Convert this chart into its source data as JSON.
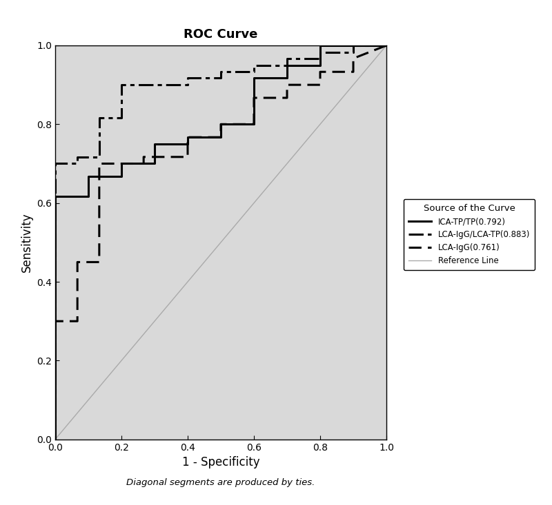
{
  "title": "ROC Curve",
  "xlabel": "1 - Specificity",
  "ylabel": "Sensitivity",
  "footnote": "Diagonal segments are produced by ties.",
  "xlim": [
    0.0,
    1.0
  ],
  "ylim": [
    0.0,
    1.0
  ],
  "xticks": [
    0.0,
    0.2,
    0.4,
    0.6,
    0.8,
    1.0
  ],
  "yticks": [
    0.0,
    0.2,
    0.4,
    0.6,
    0.8,
    1.0
  ],
  "plot_bg_color": "#d9d9d9",
  "fig_bg_color": "#ffffff",
  "legend_title": "Source of the Curve",
  "legend_entries": [
    "ICA-TP/TP(0.792)",
    "LCA-IgG/LCA-TP(0.883)",
    "LCA-IgG(0.761)",
    "Reference Line"
  ],
  "curve1_color": "#000000",
  "curve2_color": "#000000",
  "curve3_color": "#000000",
  "ref_color": "#aaaaaa",
  "curve1_lw": 2.2,
  "curve2_lw": 2.2,
  "curve3_lw": 2.2,
  "curve1_x": [
    0.0,
    0.0,
    0.1,
    0.1,
    0.2,
    0.2,
    0.3,
    0.3,
    0.4,
    0.4,
    0.5,
    0.5,
    0.6,
    0.6,
    0.7,
    0.7,
    0.8,
    0.8,
    1.0
  ],
  "curve1_y": [
    0.0,
    0.617,
    0.617,
    0.667,
    0.667,
    0.7,
    0.7,
    0.75,
    0.75,
    0.767,
    0.767,
    0.8,
    0.8,
    0.917,
    0.917,
    0.95,
    0.95,
    1.0,
    1.0
  ],
  "curve2_x": [
    0.0,
    0.0,
    0.067,
    0.067,
    0.133,
    0.133,
    0.2,
    0.2,
    0.4,
    0.4,
    0.5,
    0.5,
    0.6,
    0.6,
    0.7,
    0.7,
    0.8,
    0.8,
    0.9,
    0.9,
    1.0
  ],
  "curve2_y": [
    0.0,
    0.7,
    0.7,
    0.717,
    0.717,
    0.817,
    0.817,
    0.9,
    0.9,
    0.917,
    0.917,
    0.933,
    0.933,
    0.95,
    0.95,
    0.967,
    0.967,
    0.983,
    0.983,
    1.0,
    1.0
  ],
  "curve3_x": [
    0.0,
    0.0,
    0.067,
    0.067,
    0.133,
    0.133,
    0.267,
    0.267,
    0.4,
    0.4,
    0.5,
    0.5,
    0.6,
    0.6,
    0.7,
    0.7,
    0.8,
    0.8,
    0.9,
    0.9,
    1.0
  ],
  "curve3_y": [
    0.0,
    0.3,
    0.3,
    0.45,
    0.45,
    0.7,
    0.7,
    0.717,
    0.717,
    0.767,
    0.767,
    0.8,
    0.8,
    0.867,
    0.867,
    0.9,
    0.9,
    0.933,
    0.933,
    0.967,
    1.0
  ]
}
